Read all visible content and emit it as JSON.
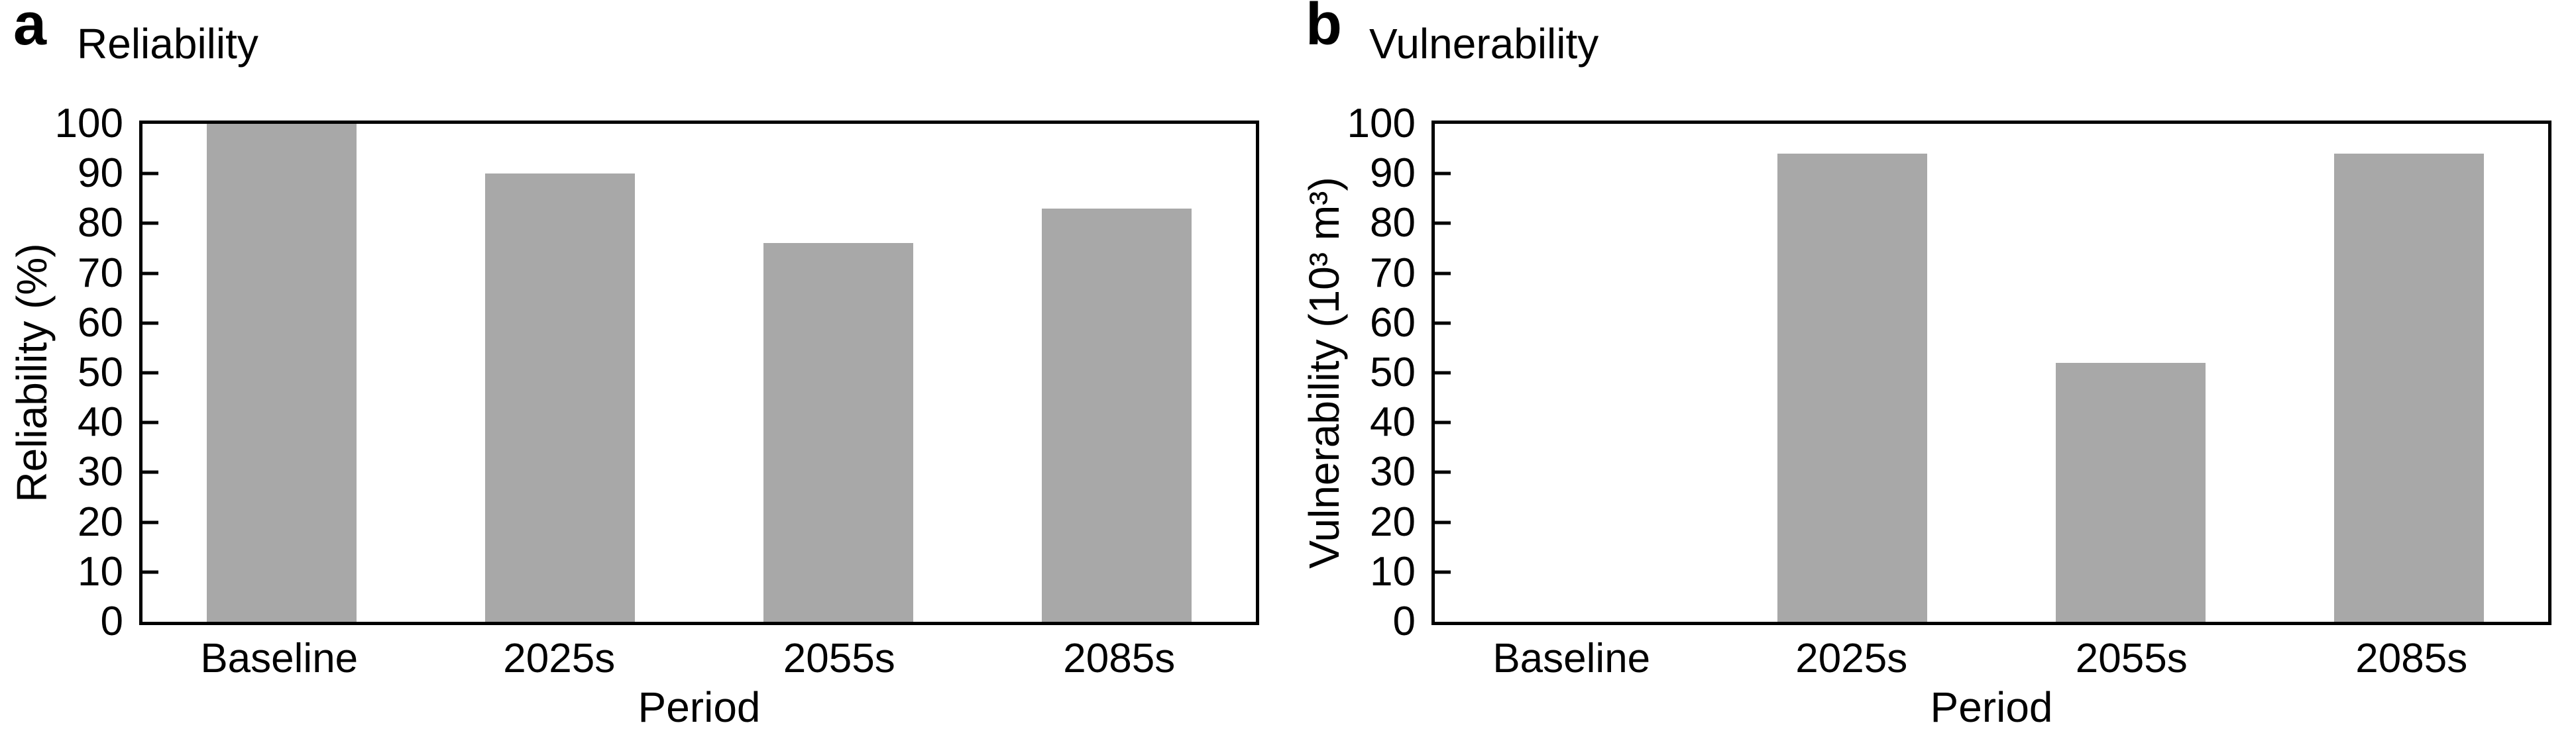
{
  "figure": {
    "background": "#ffffff",
    "colors": {
      "bar_fill": "#a8a8a8",
      "axis": "#000000",
      "text": "#000000"
    }
  },
  "chart_data": [
    {
      "type": "bar",
      "panel_letter": "a",
      "title": "Reliability",
      "categories": [
        "Baseline",
        "2025s",
        "2055s",
        "2085s"
      ],
      "values": [
        100,
        90,
        76,
        83
      ],
      "xlabel": "Period",
      "ylabel": "Reliability (%)",
      "ylim": [
        0,
        100
      ],
      "ytick_step": 10,
      "bar_color": "#a8a8a8",
      "grid": false,
      "legend": "none",
      "frame": "full-box"
    },
    {
      "type": "bar",
      "panel_letter": "b",
      "title": "Vulnerability",
      "categories": [
        "Baseline",
        "2025s",
        "2055s",
        "2085s"
      ],
      "values": [
        0,
        94,
        52,
        94
      ],
      "xlabel": "Period",
      "ylabel": "Vulnerability (10³ m³)",
      "ylim": [
        0,
        100
      ],
      "ytick_step": 10,
      "bar_color": "#a8a8a8",
      "grid": false,
      "legend": "none",
      "frame": "full-box"
    }
  ]
}
